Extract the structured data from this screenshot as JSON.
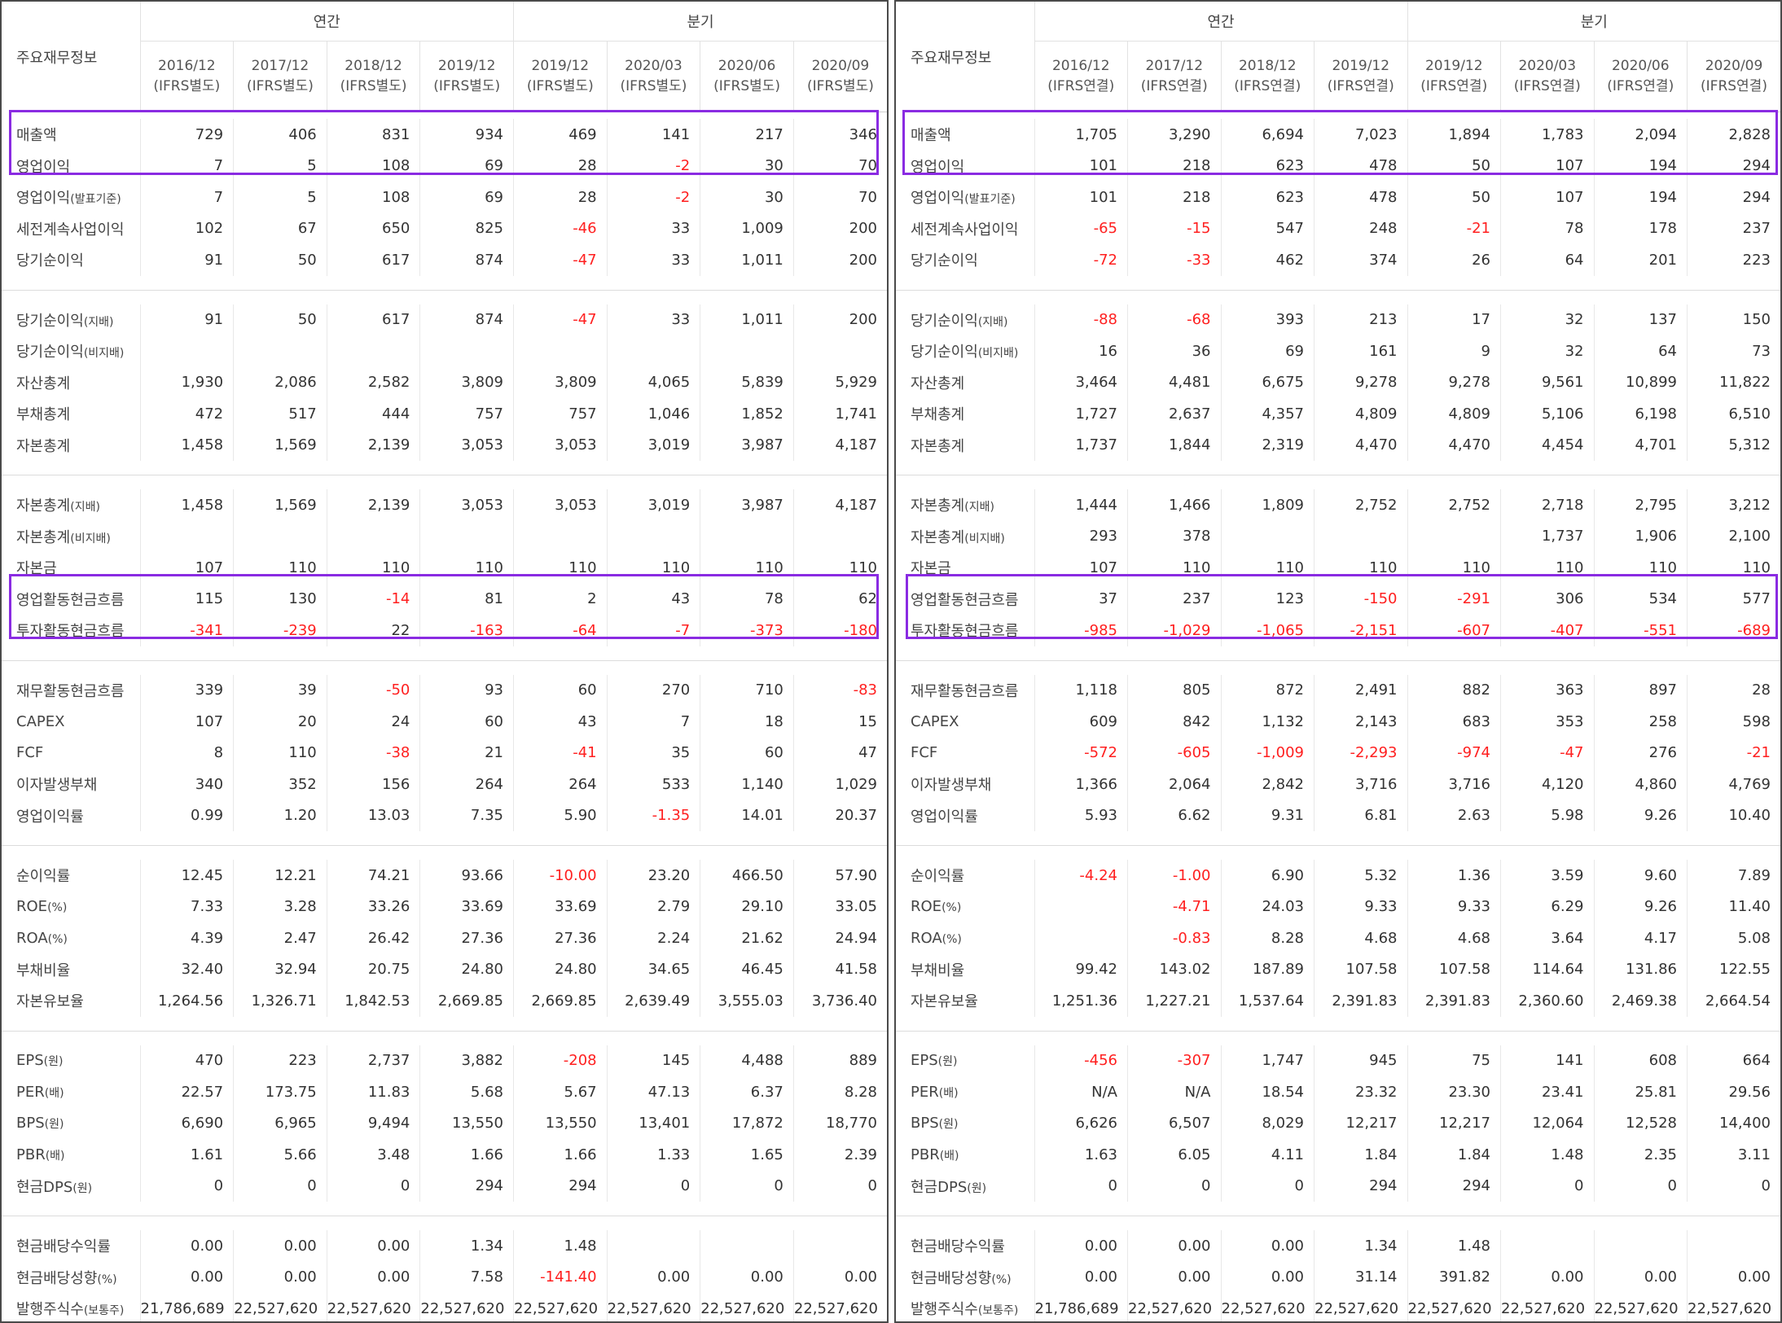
{
  "colors": {
    "negative": "#ff1f1f",
    "highlight_box": "#8a2be2"
  },
  "panels": [
    {
      "corner_label": "주요재무정보",
      "groups": [
        "연간",
        "분기"
      ],
      "periods": [
        {
          "date": "2016/12",
          "basis": "(IFRS별도)"
        },
        {
          "date": "2017/12",
          "basis": "(IFRS별도)"
        },
        {
          "date": "2018/12",
          "basis": "(IFRS별도)"
        },
        {
          "date": "2019/12",
          "basis": "(IFRS별도)"
        },
        {
          "date": "2019/12",
          "basis": "(IFRS별도)"
        },
        {
          "date": "2020/03",
          "basis": "(IFRS별도)"
        },
        {
          "date": "2020/06",
          "basis": "(IFRS별도)"
        },
        {
          "date": "2020/09",
          "basis": "(IFRS별도)"
        }
      ],
      "rows": [
        {
          "label": "매출액",
          "values": [
            "729",
            "406",
            "831",
            "934",
            "469",
            "141",
            "217",
            "346"
          ]
        },
        {
          "label": "영업이익",
          "values": [
            "7",
            "5",
            "108",
            "69",
            "28",
            "-2",
            "30",
            "70"
          ]
        },
        {
          "label": "영업이익",
          "suffix": "(발표기준)",
          "values": [
            "7",
            "5",
            "108",
            "69",
            "28",
            "-2",
            "30",
            "70"
          ]
        },
        {
          "label": "세전계속사업이익",
          "values": [
            "102",
            "67",
            "650",
            "825",
            "-46",
            "33",
            "1,009",
            "200"
          ]
        },
        {
          "label": "당기순이익",
          "values": [
            "91",
            "50",
            "617",
            "874",
            "-47",
            "33",
            "1,011",
            "200"
          ]
        },
        {
          "label": "당기순이익",
          "suffix": "(지배)",
          "values": [
            "91",
            "50",
            "617",
            "874",
            "-47",
            "33",
            "1,011",
            "200"
          ]
        },
        {
          "label": "당기순이익",
          "suffix": "(비지배)",
          "values": [
            "",
            "",
            "",
            "",
            "",
            "",
            "",
            ""
          ]
        },
        {
          "label": "자산총계",
          "values": [
            "1,930",
            "2,086",
            "2,582",
            "3,809",
            "3,809",
            "4,065",
            "5,839",
            "5,929"
          ]
        },
        {
          "label": "부채총계",
          "values": [
            "472",
            "517",
            "444",
            "757",
            "757",
            "1,046",
            "1,852",
            "1,741"
          ]
        },
        {
          "label": "자본총계",
          "values": [
            "1,458",
            "1,569",
            "2,139",
            "3,053",
            "3,053",
            "3,019",
            "3,987",
            "4,187"
          ]
        },
        {
          "label": "자본총계",
          "suffix": "(지배)",
          "values": [
            "1,458",
            "1,569",
            "2,139",
            "3,053",
            "3,053",
            "3,019",
            "3,987",
            "4,187"
          ]
        },
        {
          "label": "자본총계",
          "suffix": "(비지배)",
          "values": [
            "",
            "",
            "",
            "",
            "",
            "",
            "",
            ""
          ]
        },
        {
          "label": "자본금",
          "values": [
            "107",
            "110",
            "110",
            "110",
            "110",
            "110",
            "110",
            "110"
          ]
        },
        {
          "label": "영업활동현금흐름",
          "values": [
            "115",
            "130",
            "-14",
            "81",
            "2",
            "43",
            "78",
            "62"
          ]
        },
        {
          "label": "투자활동현금흐름",
          "values": [
            "-341",
            "-239",
            "22",
            "-163",
            "-64",
            "-7",
            "-373",
            "-180"
          ]
        },
        {
          "label": "재무활동현금흐름",
          "values": [
            "339",
            "39",
            "-50",
            "93",
            "60",
            "270",
            "710",
            "-83"
          ]
        },
        {
          "label": "CAPEX",
          "values": [
            "107",
            "20",
            "24",
            "60",
            "43",
            "7",
            "18",
            "15"
          ]
        },
        {
          "label": "FCF",
          "values": [
            "8",
            "110",
            "-38",
            "21",
            "-41",
            "35",
            "60",
            "47"
          ]
        },
        {
          "label": "이자발생부채",
          "values": [
            "340",
            "352",
            "156",
            "264",
            "264",
            "533",
            "1,140",
            "1,029"
          ]
        },
        {
          "label": "영업이익률",
          "values": [
            "0.99",
            "1.20",
            "13.03",
            "7.35",
            "5.90",
            "-1.35",
            "14.01",
            "20.37"
          ]
        },
        {
          "label": "순이익률",
          "values": [
            "12.45",
            "12.21",
            "74.21",
            "93.66",
            "-10.00",
            "23.20",
            "466.50",
            "57.90"
          ]
        },
        {
          "label": "ROE",
          "suffix": "(%)",
          "values": [
            "7.33",
            "3.28",
            "33.26",
            "33.69",
            "33.69",
            "2.79",
            "29.10",
            "33.05"
          ]
        },
        {
          "label": "ROA",
          "suffix": "(%)",
          "values": [
            "4.39",
            "2.47",
            "26.42",
            "27.36",
            "27.36",
            "2.24",
            "21.62",
            "24.94"
          ]
        },
        {
          "label": "부채비율",
          "values": [
            "32.40",
            "32.94",
            "20.75",
            "24.80",
            "24.80",
            "34.65",
            "46.45",
            "41.58"
          ]
        },
        {
          "label": "자본유보율",
          "values": [
            "1,264.56",
            "1,326.71",
            "1,842.53",
            "2,669.85",
            "2,669.85",
            "2,639.49",
            "3,555.03",
            "3,736.40"
          ]
        },
        {
          "label": "EPS",
          "suffix": "(원)",
          "values": [
            "470",
            "223",
            "2,737",
            "3,882",
            "-208",
            "145",
            "4,488",
            "889"
          ]
        },
        {
          "label": "PER",
          "suffix": "(배)",
          "values": [
            "22.57",
            "173.75",
            "11.83",
            "5.68",
            "5.67",
            "47.13",
            "6.37",
            "8.28"
          ]
        },
        {
          "label": "BPS",
          "suffix": "(원)",
          "values": [
            "6,690",
            "6,965",
            "9,494",
            "13,550",
            "13,550",
            "13,401",
            "17,872",
            "18,770"
          ]
        },
        {
          "label": "PBR",
          "suffix": "(배)",
          "values": [
            "1.61",
            "5.66",
            "3.48",
            "1.66",
            "1.66",
            "1.33",
            "1.65",
            "2.39"
          ]
        },
        {
          "label": "현금DPS",
          "suffix": "(원)",
          "values": [
            "0",
            "0",
            "0",
            "294",
            "294",
            "0",
            "0",
            "0"
          ]
        },
        {
          "label": "현금배당수익률",
          "values": [
            "0.00",
            "0.00",
            "0.00",
            "1.34",
            "1.48",
            "",
            "",
            ""
          ]
        },
        {
          "label": "현금배당성향",
          "suffix": "(%)",
          "values": [
            "0.00",
            "0.00",
            "0.00",
            "7.58",
            "-141.40",
            "0.00",
            "0.00",
            "0.00"
          ]
        },
        {
          "label": "발행주식수",
          "suffix": "(보통주)",
          "values": [
            "21,786,689",
            "22,527,620",
            "22,527,620",
            "22,527,620",
            "22,527,620",
            "22,527,620",
            "22,527,620",
            "22,527,620"
          ]
        }
      ]
    },
    {
      "corner_label": "주요재무정보",
      "groups": [
        "연간",
        "분기"
      ],
      "periods": [
        {
          "date": "2016/12",
          "basis": "(IFRS연결)"
        },
        {
          "date": "2017/12",
          "basis": "(IFRS연결)"
        },
        {
          "date": "2018/12",
          "basis": "(IFRS연결)"
        },
        {
          "date": "2019/12",
          "basis": "(IFRS연결)"
        },
        {
          "date": "2019/12",
          "basis": "(IFRS연결)"
        },
        {
          "date": "2020/03",
          "basis": "(IFRS연결)"
        },
        {
          "date": "2020/06",
          "basis": "(IFRS연결)"
        },
        {
          "date": "2020/09",
          "basis": "(IFRS연결)"
        }
      ],
      "rows": [
        {
          "label": "매출액",
          "values": [
            "1,705",
            "3,290",
            "6,694",
            "7,023",
            "1,894",
            "1,783",
            "2,094",
            "2,828"
          ]
        },
        {
          "label": "영업이익",
          "values": [
            "101",
            "218",
            "623",
            "478",
            "50",
            "107",
            "194",
            "294"
          ]
        },
        {
          "label": "영업이익",
          "suffix": "(발표기준)",
          "values": [
            "101",
            "218",
            "623",
            "478",
            "50",
            "107",
            "194",
            "294"
          ]
        },
        {
          "label": "세전계속사업이익",
          "values": [
            "-65",
            "-15",
            "547",
            "248",
            "-21",
            "78",
            "178",
            "237"
          ]
        },
        {
          "label": "당기순이익",
          "values": [
            "-72",
            "-33",
            "462",
            "374",
            "26",
            "64",
            "201",
            "223"
          ]
        },
        {
          "label": "당기순이익",
          "suffix": "(지배)",
          "values": [
            "-88",
            "-68",
            "393",
            "213",
            "17",
            "32",
            "137",
            "150"
          ]
        },
        {
          "label": "당기순이익",
          "suffix": "(비지배)",
          "values": [
            "16",
            "36",
            "69",
            "161",
            "9",
            "32",
            "64",
            "73"
          ]
        },
        {
          "label": "자산총계",
          "values": [
            "3,464",
            "4,481",
            "6,675",
            "9,278",
            "9,278",
            "9,561",
            "10,899",
            "11,822"
          ]
        },
        {
          "label": "부채총계",
          "values": [
            "1,727",
            "2,637",
            "4,357",
            "4,809",
            "4,809",
            "5,106",
            "6,198",
            "6,510"
          ]
        },
        {
          "label": "자본총계",
          "values": [
            "1,737",
            "1,844",
            "2,319",
            "4,470",
            "4,470",
            "4,454",
            "4,701",
            "5,312"
          ]
        },
        {
          "label": "자본총계",
          "suffix": "(지배)",
          "values": [
            "1,444",
            "1,466",
            "1,809",
            "2,752",
            "2,752",
            "2,718",
            "2,795",
            "3,212"
          ]
        },
        {
          "label": "자본총계",
          "suffix": "(비지배)",
          "values": [
            "293",
            "378",
            "",
            "",
            "",
            "1,737",
            "1,906",
            "2,100"
          ]
        },
        {
          "label": "자본금",
          "values": [
            "107",
            "110",
            "110",
            "110",
            "110",
            "110",
            "110",
            "110"
          ]
        },
        {
          "label": "영업활동현금흐름",
          "values": [
            "37",
            "237",
            "123",
            "-150",
            "-291",
            "306",
            "534",
            "577"
          ]
        },
        {
          "label": "투자활동현금흐름",
          "values": [
            "-985",
            "-1,029",
            "-1,065",
            "-2,151",
            "-607",
            "-407",
            "-551",
            "-689"
          ]
        },
        {
          "label": "재무활동현금흐름",
          "values": [
            "1,118",
            "805",
            "872",
            "2,491",
            "882",
            "363",
            "897",
            "28"
          ]
        },
        {
          "label": "CAPEX",
          "values": [
            "609",
            "842",
            "1,132",
            "2,143",
            "683",
            "353",
            "258",
            "598"
          ]
        },
        {
          "label": "FCF",
          "values": [
            "-572",
            "-605",
            "-1,009",
            "-2,293",
            "-974",
            "-47",
            "276",
            "-21"
          ]
        },
        {
          "label": "이자발생부채",
          "values": [
            "1,366",
            "2,064",
            "2,842",
            "3,716",
            "3,716",
            "4,120",
            "4,860",
            "4,769"
          ]
        },
        {
          "label": "영업이익률",
          "values": [
            "5.93",
            "6.62",
            "9.31",
            "6.81",
            "2.63",
            "5.98",
            "9.26",
            "10.40"
          ]
        },
        {
          "label": "순이익률",
          "values": [
            "-4.24",
            "-1.00",
            "6.90",
            "5.32",
            "1.36",
            "3.59",
            "9.60",
            "7.89"
          ]
        },
        {
          "label": "ROE",
          "suffix": "(%)",
          "values": [
            "",
            "-4.71",
            "24.03",
            "9.33",
            "9.33",
            "6.29",
            "9.26",
            "11.40"
          ]
        },
        {
          "label": "ROA",
          "suffix": "(%)",
          "values": [
            "",
            "-0.83",
            "8.28",
            "4.68",
            "4.68",
            "3.64",
            "4.17",
            "5.08"
          ]
        },
        {
          "label": "부채비율",
          "values": [
            "99.42",
            "143.02",
            "187.89",
            "107.58",
            "107.58",
            "114.64",
            "131.86",
            "122.55"
          ]
        },
        {
          "label": "자본유보율",
          "values": [
            "1,251.36",
            "1,227.21",
            "1,537.64",
            "2,391.83",
            "2,391.83",
            "2,360.60",
            "2,469.38",
            "2,664.54"
          ]
        },
        {
          "label": "EPS",
          "suffix": "(원)",
          "values": [
            "-456",
            "-307",
            "1,747",
            "945",
            "75",
            "141",
            "608",
            "664"
          ]
        },
        {
          "label": "PER",
          "suffix": "(배)",
          "values": [
            "N/A",
            "N/A",
            "18.54",
            "23.32",
            "23.30",
            "23.41",
            "25.81",
            "29.56"
          ]
        },
        {
          "label": "BPS",
          "suffix": "(원)",
          "values": [
            "6,626",
            "6,507",
            "8,029",
            "12,217",
            "12,217",
            "12,064",
            "12,528",
            "14,400"
          ]
        },
        {
          "label": "PBR",
          "suffix": "(배)",
          "values": [
            "1.63",
            "6.05",
            "4.11",
            "1.84",
            "1.84",
            "1.48",
            "2.35",
            "3.11"
          ]
        },
        {
          "label": "현금DPS",
          "suffix": "(원)",
          "values": [
            "0",
            "0",
            "0",
            "294",
            "294",
            "0",
            "0",
            "0"
          ]
        },
        {
          "label": "현금배당수익률",
          "values": [
            "0.00",
            "0.00",
            "0.00",
            "1.34",
            "1.48",
            "",
            "",
            ""
          ]
        },
        {
          "label": "현금배당성향",
          "suffix": "(%)",
          "values": [
            "0.00",
            "0.00",
            "0.00",
            "31.14",
            "391.82",
            "0.00",
            "0.00",
            "0.00"
          ]
        },
        {
          "label": "발행주식수",
          "suffix": "(보통주)",
          "values": [
            "21,786,689",
            "22,527,620",
            "22,527,620",
            "22,527,620",
            "22,527,620",
            "22,527,620",
            "22,527,620",
            "22,527,620"
          ]
        }
      ]
    }
  ]
}
